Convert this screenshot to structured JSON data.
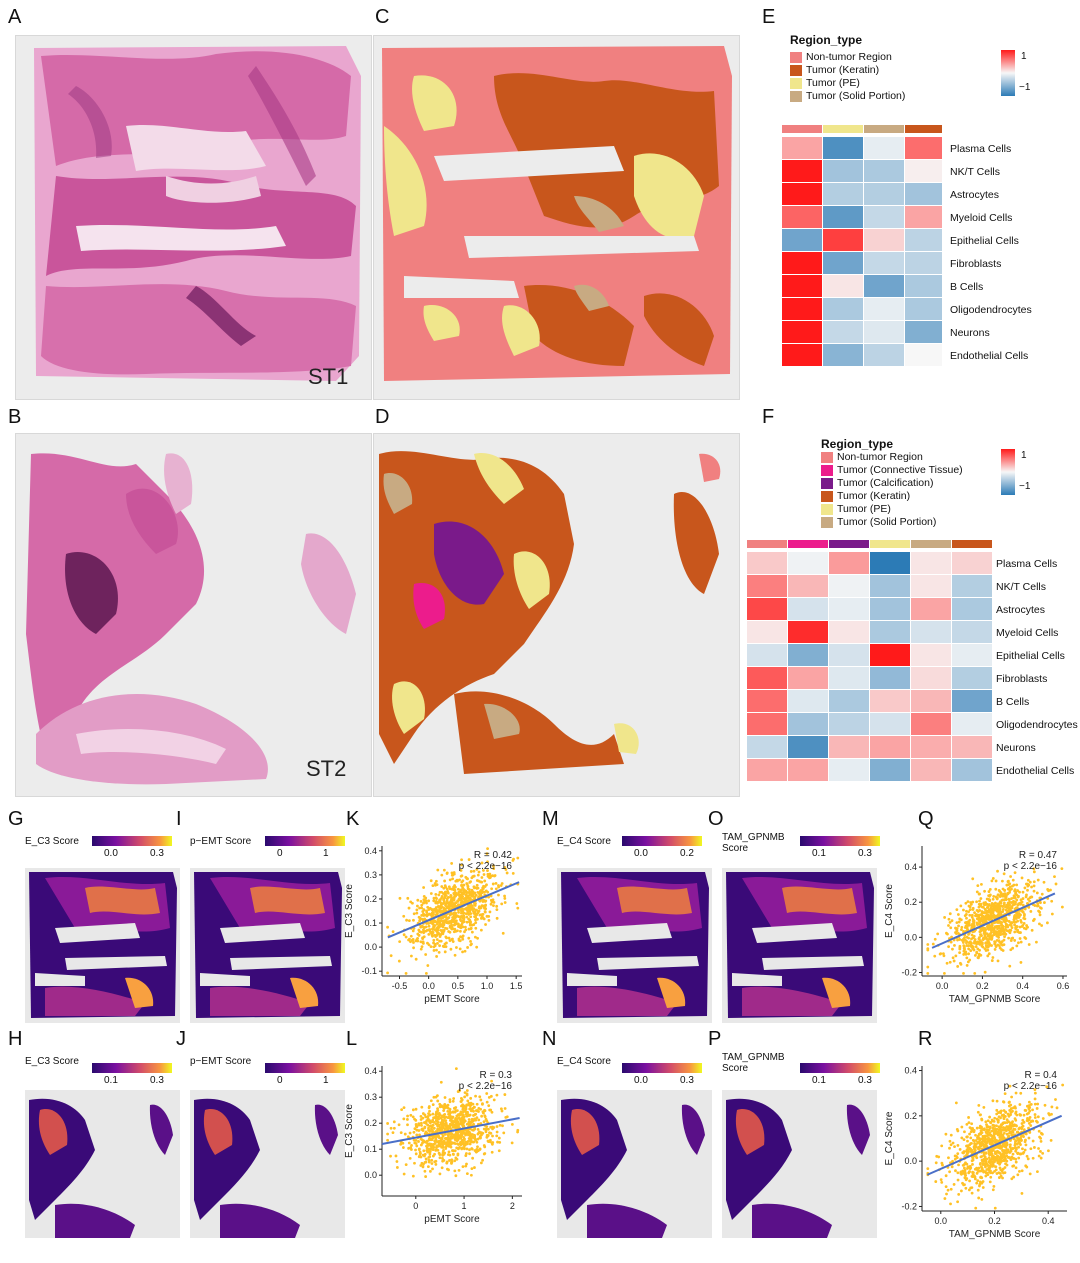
{
  "panel_letters": [
    "A",
    "B",
    "C",
    "D",
    "E",
    "F",
    "G",
    "H",
    "I",
    "J",
    "K",
    "L",
    "M",
    "N",
    "O",
    "P",
    "Q",
    "R"
  ],
  "sample_labels": {
    "st1": "ST1",
    "st2": "ST2"
  },
  "colors": {
    "non_tumor": "#f08080",
    "connective": "#ec1c8c",
    "calcification": "#7a1a8a",
    "keratin": "#c8561c",
    "pe": "#f0e68c",
    "solid": "#c8aa82",
    "tissue_pink": "#d86aa8",
    "heat_high": "#ff1a1a",
    "heat_low": "#2c7bb6",
    "scatter": "#ffc125",
    "fit_line": "#4a6fc8"
  },
  "heatmap_E": {
    "legend_title": "Region_type",
    "legend_items": [
      {
        "label": "Non-tumor Region",
        "color": "#f08080"
      },
      {
        "label": "Tumor (Keratin)",
        "color": "#c8561c"
      },
      {
        "label": "Tumor (PE)",
        "color": "#f0e68c"
      },
      {
        "label": "Tumor (Solid Portion)",
        "color": "#c8aa82"
      }
    ],
    "colorbar_ticks": [
      "1",
      "−1"
    ],
    "column_colors": [
      "#f08080",
      "#f0e68c",
      "#c8aa82",
      "#c8561c"
    ],
    "rows": [
      "Plasma Cells",
      "NK/T Cells",
      "Astrocytes",
      "Myeloid Cells",
      "Epithelial Cells",
      "Fibroblasts",
      "B Cells",
      "Oligodendrocytes",
      "Neurons",
      "Endothelial Cells"
    ],
    "values": [
      [
        0.45,
        -1.0,
        -0.1,
        0.75
      ],
      [
        1.2,
        -0.5,
        -0.45,
        0.05
      ],
      [
        1.2,
        -0.4,
        -0.4,
        -0.5
      ],
      [
        0.8,
        -0.9,
        -0.3,
        0.45
      ],
      [
        -0.8,
        1.0,
        0.2,
        -0.35
      ],
      [
        1.2,
        -0.8,
        -0.3,
        -0.35
      ],
      [
        1.2,
        0.1,
        -0.8,
        -0.45
      ],
      [
        1.2,
        -0.45,
        -0.1,
        -0.45
      ],
      [
        1.2,
        -0.3,
        -0.15,
        -0.7
      ],
      [
        1.2,
        -0.65,
        -0.35,
        0.0
      ]
    ]
  },
  "heatmap_F": {
    "legend_title": "Region_type",
    "legend_items": [
      {
        "label": "Non-tumor Region",
        "color": "#f08080"
      },
      {
        "label": "Tumor (Connective Tissue)",
        "color": "#ec1c8c"
      },
      {
        "label": "Tumor (Calcification)",
        "color": "#7a1a8a"
      },
      {
        "label": "Tumor (Keratin)",
        "color": "#c8561c"
      },
      {
        "label": "Tumor (PE)",
        "color": "#f0e68c"
      },
      {
        "label": "Tumor (Solid Portion)",
        "color": "#c8aa82"
      }
    ],
    "colorbar_ticks": [
      "1",
      "−1"
    ],
    "column_colors": [
      "#f08080",
      "#ec1c8c",
      "#7a1a8a",
      "#f0e68c",
      "#c8aa82",
      "#c8561c"
    ],
    "rows": [
      "Plasma Cells",
      "NK/T Cells",
      "Astrocytes",
      "Myeloid Cells",
      "Epithelial Cells",
      "Fibroblasts",
      "B Cells",
      "Oligodendrocytes",
      "Neurons",
      "Endothelial Cells"
    ],
    "values": [
      [
        0.25,
        -0.05,
        0.5,
        -1.2,
        0.1,
        0.2
      ],
      [
        0.65,
        0.35,
        -0.05,
        -0.5,
        0.1,
        -0.4
      ],
      [
        0.95,
        -0.2,
        -0.1,
        -0.5,
        0.45,
        -0.45
      ],
      [
        0.1,
        1.1,
        0.1,
        -0.45,
        -0.2,
        -0.3
      ],
      [
        -0.2,
        -0.7,
        -0.2,
        1.2,
        0.1,
        -0.1
      ],
      [
        0.85,
        0.45,
        -0.15,
        -0.6,
        0.15,
        -0.4
      ],
      [
        0.75,
        -0.15,
        -0.45,
        0.25,
        0.35,
        -0.8
      ],
      [
        0.75,
        -0.5,
        -0.35,
        -0.2,
        0.65,
        -0.1
      ],
      [
        -0.3,
        -1.0,
        0.35,
        0.45,
        0.4,
        0.35
      ],
      [
        0.45,
        0.45,
        -0.1,
        -0.7,
        0.35,
        -0.5
      ]
    ]
  },
  "score_maps": {
    "G": {
      "title": "E_C3 Score",
      "ticks": [
        "0.0",
        "0.3"
      ]
    },
    "I": {
      "title": "p−EMT Score",
      "ticks": [
        "0",
        "1"
      ]
    },
    "M": {
      "title": "E_C4 Score",
      "ticks": [
        "0.0",
        "0.2"
      ]
    },
    "O": {
      "title": "TAM_GPNMB\nScore",
      "ticks": [
        "0.1",
        "0.3"
      ]
    },
    "H": {
      "title": "E_C3 Score",
      "ticks": [
        "0.1",
        "0.3"
      ]
    },
    "J": {
      "title": "p−EMT Score",
      "ticks": [
        "0",
        "1"
      ]
    },
    "N": {
      "title": "E_C4 Score",
      "ticks": [
        "0.0",
        "0.3"
      ]
    },
    "P": {
      "title": "TAM_GPNMB\nScore",
      "ticks": [
        "0.1",
        "0.3"
      ]
    }
  },
  "chart_data": [
    {
      "panel": "K",
      "type": "scatter",
      "xlabel": "pEMT Score",
      "ylabel": "E_C3 Score",
      "xlim": [
        -0.8,
        1.6
      ],
      "ylim": [
        -0.12,
        0.42
      ],
      "xticks": [
        "-0.5",
        "0.0",
        "0.5",
        "1.0",
        "1.5"
      ],
      "yticks": [
        "-0.1",
        "0.0",
        "0.1",
        "0.2",
        "0.3",
        "0.4"
      ],
      "annotation": [
        "R = 0.42",
        "p < 2.2e−16"
      ],
      "fit": {
        "x": [
          -0.7,
          1.55
        ],
        "y": [
          0.04,
          0.27
        ]
      }
    },
    {
      "panel": "L",
      "type": "scatter",
      "xlabel": "pEMT Score",
      "ylabel": "E_C3 Score",
      "xlim": [
        -0.7,
        2.2
      ],
      "ylim": [
        -0.08,
        0.42
      ],
      "xticks": [
        "0",
        "1",
        "2"
      ],
      "yticks": [
        "0.0",
        "0.1",
        "0.2",
        "0.3",
        "0.4"
      ],
      "annotation": [
        "R = 0.3",
        "p < 2.2e−16"
      ],
      "fit": {
        "x": [
          -0.7,
          2.15
        ],
        "y": [
          0.12,
          0.22
        ]
      }
    },
    {
      "panel": "Q",
      "type": "scatter",
      "xlabel": "TAM_GPNMB Score",
      "ylabel": "E_C4 Score",
      "xlim": [
        -0.1,
        0.62
      ],
      "ylim": [
        -0.22,
        0.52
      ],
      "xticks": [
        "0.0",
        "0.2",
        "0.4",
        "0.6"
      ],
      "yticks": [
        "-0.2",
        "0.0",
        "0.2",
        "0.4"
      ],
      "annotation": [
        "R = 0.47",
        "p < 2.2e−16"
      ],
      "fit": {
        "x": [
          -0.05,
          0.56
        ],
        "y": [
          -0.06,
          0.25
        ]
      }
    },
    {
      "panel": "R",
      "type": "scatter",
      "xlabel": "TAM_GPNMB Score",
      "ylabel": "E_C4 Score",
      "xlim": [
        -0.07,
        0.47
      ],
      "ylim": [
        -0.22,
        0.42
      ],
      "xticks": [
        "0.0",
        "0.2",
        "0.4"
      ],
      "yticks": [
        "-0.2",
        "0.0",
        "0.2",
        "0.4"
      ],
      "annotation": [
        "R = 0.4",
        "p < 2.2e−16"
      ],
      "fit": {
        "x": [
          -0.05,
          0.45
        ],
        "y": [
          -0.06,
          0.2
        ]
      }
    }
  ]
}
